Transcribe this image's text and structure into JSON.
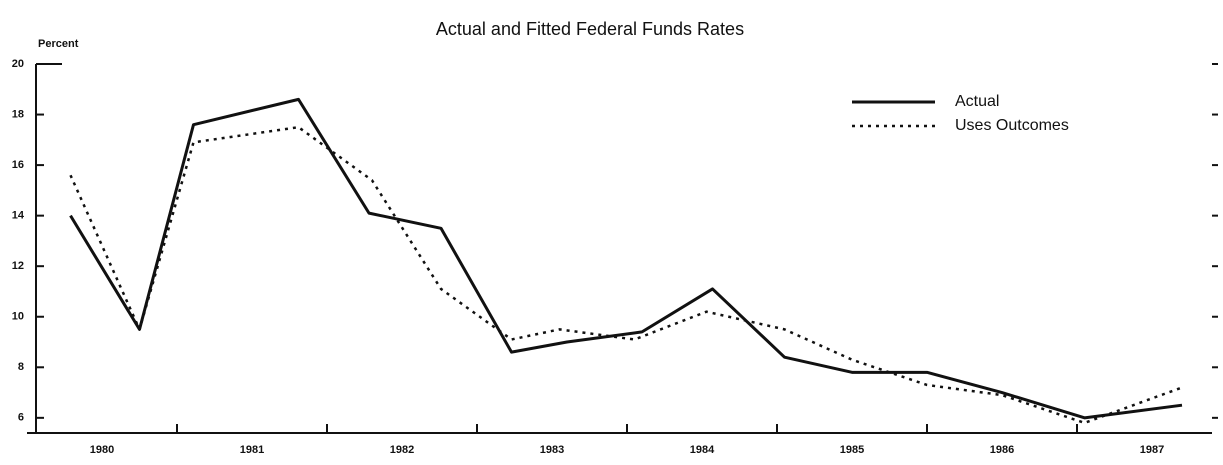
{
  "chart_data": {
    "type": "line",
    "title": "Actual and Fitted Federal Funds Rates",
    "ylabel": "Percent",
    "series": [
      {
        "name": "Actual",
        "color": "#111111",
        "style": "solid",
        "x": [
          1980.29,
          1980.75,
          1981.11,
          1981.81,
          1982.28,
          1982.76,
          1983.23,
          1983.6,
          1984.1,
          1984.57,
          1985.05,
          1985.5,
          1986.0,
          1986.5,
          1987.05,
          1987.7
        ],
        "values": [
          14.0,
          9.5,
          17.6,
          18.6,
          14.1,
          13.5,
          8.6,
          9.0,
          9.4,
          11.1,
          8.4,
          7.8,
          7.8,
          7.0,
          6.0,
          6.5
        ]
      },
      {
        "name": "Uses Outcomes",
        "color": "#111111",
        "style": "dotted",
        "x": [
          1980.29,
          1980.75,
          1981.11,
          1981.81,
          1982.3,
          1982.76,
          1983.23,
          1983.55,
          1984.05,
          1984.53,
          1985.05,
          1985.5,
          1986.0,
          1986.5,
          1987.05,
          1987.7
        ],
        "values": [
          15.6,
          9.5,
          16.9,
          17.5,
          15.4,
          11.1,
          9.1,
          9.5,
          9.1,
          10.2,
          9.5,
          8.3,
          7.3,
          6.9,
          5.8,
          7.2
        ]
      }
    ],
    "xlim": [
      1980,
      1987.9
    ],
    "xticks": [
      1981,
      1982,
      1983,
      1984,
      1985,
      1986,
      1987
    ],
    "xtick_labels": [
      {
        "value": 1980.5,
        "label": "1980"
      },
      {
        "value": 1981.5,
        "label": "1981"
      },
      {
        "value": 1982.5,
        "label": "1982"
      },
      {
        "value": 1983.5,
        "label": "1983"
      },
      {
        "value": 1984.5,
        "label": "1984"
      },
      {
        "value": 1985.5,
        "label": "1985"
      },
      {
        "value": 1986.5,
        "label": "1986"
      },
      {
        "value": 1987.5,
        "label": "1987"
      }
    ],
    "ylim": [
      5.4,
      20
    ],
    "yticks": [
      6,
      8,
      10,
      12,
      14,
      16,
      18,
      20
    ],
    "legend": "upper right"
  }
}
